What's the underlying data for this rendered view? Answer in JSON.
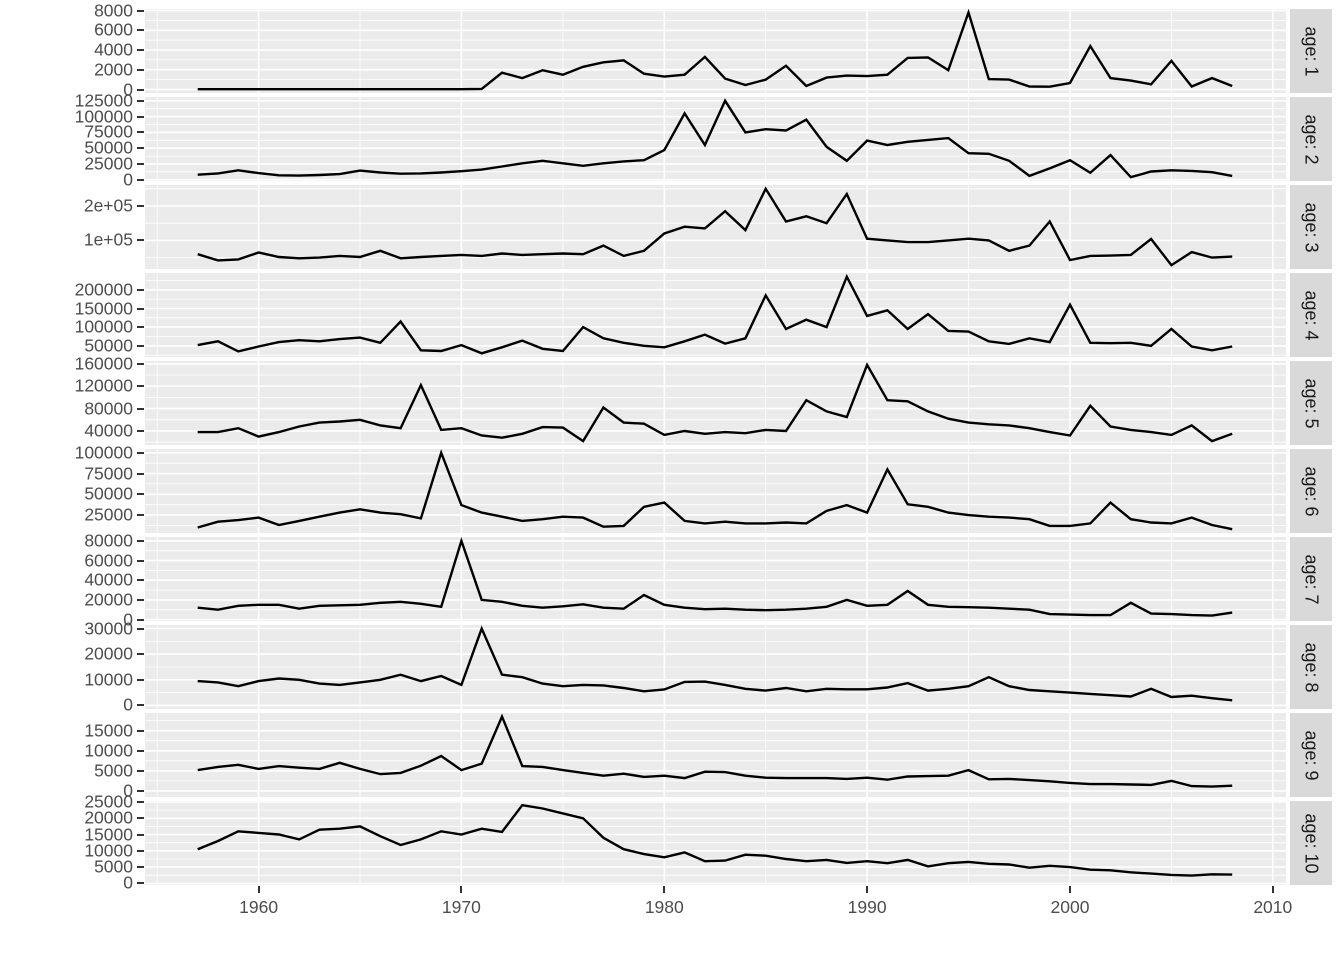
{
  "figure": {
    "background": "#FFFFFF",
    "panel_background": "#EBEBEB",
    "grid_color": "#FFFFFF",
    "strip_background": "#D9D9D9",
    "strip_text_color": "#1A1A1A",
    "axis_text_color": "#4D4D4D",
    "tick_mark_color": "#333333",
    "line_color": "#000000"
  },
  "chart_data": {
    "type": "line",
    "title": "",
    "xlabel": "",
    "ylabel": "",
    "facet_variable": "age",
    "legend": "none",
    "grid": "on",
    "x": [
      1957,
      1958,
      1959,
      1960,
      1961,
      1962,
      1963,
      1964,
      1965,
      1966,
      1967,
      1968,
      1969,
      1970,
      1971,
      1972,
      1973,
      1974,
      1975,
      1976,
      1977,
      1978,
      1979,
      1980,
      1981,
      1982,
      1983,
      1984,
      1985,
      1986,
      1987,
      1988,
      1989,
      1990,
      1991,
      1992,
      1993,
      1994,
      1995,
      1996,
      1997,
      1998,
      1999,
      2000,
      2001,
      2002,
      2003,
      2004,
      2005,
      2006,
      2007,
      2008
    ],
    "x_axis": {
      "ticks": [
        1960,
        1970,
        1980,
        1990,
        2000,
        2010
      ],
      "tick_labels": [
        "1960",
        "1970",
        "1980",
        "1990",
        "2000",
        "2010"
      ],
      "minor_ticks": [
        1955,
        1965,
        1975,
        1985,
        1995,
        2005
      ],
      "range": [
        1954.4,
        2010.65
      ]
    },
    "facets": [
      {
        "label": "age: 1",
        "y_ticks": [
          0,
          2000,
          4000,
          6000,
          8000
        ],
        "y_tick_labels": [
          "0",
          "2000",
          "4000",
          "6000",
          "8000"
        ],
        "ylim": [
          -360,
          8160
        ],
        "values": [
          30,
          30,
          30,
          30,
          30,
          30,
          30,
          30,
          30,
          30,
          30,
          30,
          30,
          30,
          60,
          1700,
          1150,
          1950,
          1500,
          2300,
          2750,
          2950,
          1600,
          1300,
          1500,
          3300,
          1100,
          450,
          1000,
          2400,
          350,
          1200,
          1400,
          1350,
          1500,
          3200,
          3250,
          1950,
          7800,
          1050,
          1000,
          300,
          280,
          650,
          4400,
          1150,
          900,
          520,
          2900,
          300,
          1150,
          350
        ]
      },
      {
        "label": "age: 2",
        "y_ticks": [
          0,
          25000,
          50000,
          75000,
          100000,
          125000
        ],
        "y_tick_labels": [
          "0",
          "25000",
          "50000",
          "75000",
          "100000",
          "125000"
        ],
        "ylim": [
          -2000,
          131000
        ],
        "values": [
          8000,
          10000,
          15000,
          10500,
          7000,
          6500,
          7500,
          9000,
          14500,
          11500,
          9500,
          10000,
          11500,
          13500,
          16000,
          21000,
          26000,
          30000,
          26000,
          22000,
          26000,
          29000,
          31000,
          47000,
          105000,
          55000,
          125000,
          75000,
          80000,
          78000,
          95000,
          52000,
          30000,
          62000,
          55000,
          60000,
          63000,
          66000,
          42000,
          41000,
          30000,
          6000,
          18000,
          31000,
          11000,
          39000,
          4000,
          13000,
          15000,
          14000,
          12000,
          6000
        ]
      },
      {
        "label": "age: 3",
        "y_ticks": [
          100000,
          200000
        ],
        "y_tick_labels": [
          "1e+05",
          "2e+05"
        ],
        "ylim": [
          17000,
          261000
        ],
        "values": [
          60000,
          42000,
          45000,
          65000,
          52000,
          48000,
          50000,
          55000,
          52000,
          70000,
          48000,
          52000,
          55000,
          58000,
          55000,
          62000,
          58000,
          60000,
          62000,
          60000,
          85000,
          55000,
          70000,
          120000,
          140000,
          135000,
          185000,
          130000,
          250000,
          155000,
          170000,
          150000,
          235000,
          105000,
          100000,
          95000,
          95000,
          100000,
          105000,
          100000,
          70000,
          85000,
          155000,
          43000,
          55000,
          56000,
          58000,
          104000,
          28000,
          66000,
          50000,
          53000
        ]
      },
      {
        "label": "age: 4",
        "y_ticks": [
          50000,
          100000,
          150000,
          200000
        ],
        "y_tick_labels": [
          "50000",
          "100000",
          "150000",
          "200000"
        ],
        "ylim": [
          20000,
          245000
        ],
        "values": [
          52000,
          62000,
          35000,
          48000,
          60000,
          65000,
          62000,
          68000,
          72000,
          58000,
          115000,
          38000,
          36000,
          52000,
          30000,
          46000,
          64000,
          42000,
          36000,
          100000,
          70000,
          58000,
          50000,
          46000,
          62000,
          80000,
          56000,
          70000,
          185000,
          95000,
          120000,
          100000,
          235000,
          130000,
          145000,
          95000,
          135000,
          90000,
          88000,
          62000,
          55000,
          70000,
          60000,
          160000,
          58000,
          57000,
          58000,
          50000,
          95000,
          48000,
          38000,
          48000
        ]
      },
      {
        "label": "age: 5",
        "y_ticks": [
          40000,
          80000,
          120000,
          160000
        ],
        "y_tick_labels": [
          "40000",
          "80000",
          "120000",
          "160000"
        ],
        "ylim": [
          15000,
          165000
        ],
        "values": [
          38000,
          38000,
          45000,
          30000,
          38000,
          48000,
          55000,
          57000,
          60000,
          50000,
          45000,
          122000,
          42000,
          45000,
          32000,
          28000,
          35000,
          47000,
          46000,
          22000,
          82000,
          55000,
          53000,
          33000,
          40000,
          35000,
          38000,
          36000,
          42000,
          40000,
          95000,
          75000,
          65000,
          158000,
          95000,
          93000,
          75000,
          62000,
          55000,
          52000,
          50000,
          45000,
          38000,
          32000,
          85000,
          48000,
          42000,
          38000,
          33000,
          50000,
          22000,
          35000
        ]
      },
      {
        "label": "age: 6",
        "y_ticks": [
          25000,
          50000,
          75000,
          100000
        ],
        "y_tick_labels": [
          "25000",
          "50000",
          "75000",
          "100000"
        ],
        "ylim": [
          3400,
          104600
        ],
        "values": [
          10000,
          17000,
          19000,
          22000,
          13000,
          18000,
          23000,
          28000,
          32000,
          28000,
          26000,
          21000,
          100000,
          37000,
          28000,
          23000,
          18000,
          20000,
          23000,
          22000,
          11000,
          12000,
          35000,
          40000,
          18000,
          15000,
          17000,
          15000,
          15000,
          16000,
          15000,
          30000,
          37000,
          28000,
          80000,
          38000,
          35000,
          28000,
          25000,
          23000,
          22000,
          20000,
          12000,
          12000,
          15000,
          40000,
          20000,
          16000,
          15000,
          22000,
          13000,
          8000
        ]
      },
      {
        "label": "age: 7",
        "y_ticks": [
          0,
          20000,
          40000,
          60000,
          80000
        ],
        "y_tick_labels": [
          "0",
          "20000",
          "40000",
          "60000",
          "80000"
        ],
        "ylim": [
          -1500,
          84000
        ],
        "values": [
          12000,
          10000,
          14000,
          15000,
          15000,
          11000,
          14000,
          14500,
          15000,
          17000,
          18000,
          16000,
          13000,
          80000,
          20000,
          18000,
          14000,
          12000,
          13500,
          15500,
          12000,
          11000,
          25000,
          15000,
          12000,
          10500,
          11000,
          10000,
          9500,
          10000,
          11000,
          13000,
          20000,
          14000,
          15000,
          29000,
          15000,
          13000,
          12500,
          12000,
          11000,
          10000,
          5500,
          5000,
          4500,
          4500,
          17000,
          6000,
          5500,
          4500,
          4000,
          7000
        ]
      },
      {
        "label": "age: 8",
        "y_ticks": [
          0,
          10000,
          20000,
          30000
        ],
        "y_tick_labels": [
          "0",
          "10000",
          "20000",
          "30000"
        ],
        "ylim": [
          -1400,
          31400
        ],
        "values": [
          9500,
          9000,
          7500,
          9500,
          10500,
          10000,
          8500,
          8000,
          9000,
          10000,
          12000,
          9500,
          11500,
          8000,
          30000,
          12000,
          11000,
          8500,
          7500,
          8000,
          7800,
          6800,
          5500,
          6200,
          9200,
          9300,
          8000,
          6500,
          5800,
          6800,
          5500,
          6500,
          6300,
          6300,
          7000,
          8700,
          5800,
          6500,
          7500,
          11000,
          7500,
          6000,
          5500,
          5000,
          4500,
          4000,
          3500,
          6500,
          3300,
          3800,
          2800,
          2000
        ]
      },
      {
        "label": "age: 9",
        "y_ticks": [
          0,
          5000,
          10000,
          15000
        ],
        "y_tick_labels": [
          "0",
          "5000",
          "10000",
          "15000"
        ],
        "ylim": [
          -1500,
          19400
        ],
        "values": [
          5200,
          6000,
          6500,
          5500,
          6200,
          5800,
          5500,
          7000,
          5500,
          4200,
          4500,
          6300,
          8700,
          5200,
          6800,
          18500,
          6200,
          6000,
          5200,
          4500,
          3800,
          4300,
          3500,
          3800,
          3200,
          4800,
          4700,
          3800,
          3300,
          3200,
          3200,
          3200,
          3000,
          3300,
          2800,
          3600,
          3700,
          3800,
          5200,
          2900,
          3000,
          2700,
          2400,
          2000,
          1700,
          1700,
          1600,
          1500,
          2500,
          1200,
          1100,
          1300
        ]
      },
      {
        "label": "age: 10",
        "y_ticks": [
          0,
          5000,
          10000,
          15000,
          20000,
          25000
        ],
        "y_tick_labels": [
          "0",
          "5000",
          "10000",
          "15000",
          "20000",
          "25000"
        ],
        "ylim": [
          -500,
          25300
        ],
        "values": [
          10500,
          13000,
          16000,
          15500,
          15000,
          13500,
          16500,
          16800,
          17500,
          14500,
          11800,
          13500,
          16000,
          15000,
          16800,
          15800,
          24000,
          23000,
          21500,
          20000,
          14000,
          10500,
          9000,
          8000,
          9500,
          6800,
          7000,
          8800,
          8500,
          7500,
          6800,
          7200,
          6300,
          6800,
          6200,
          7200,
          5200,
          6200,
          6600,
          6000,
          5800,
          4800,
          5400,
          5000,
          4200,
          4000,
          3400,
          3000,
          2600,
          2400,
          2800,
          2700
        ]
      }
    ]
  }
}
